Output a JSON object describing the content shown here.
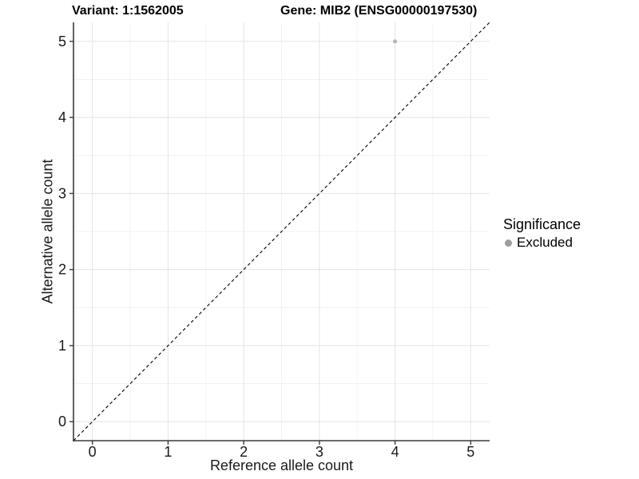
{
  "header": {
    "variant_title": "Variant: 1:1562005",
    "gene_title": "Gene: MIB2 (ENSG00000197530)"
  },
  "chart_data": {
    "type": "scatter",
    "title": "Variant: 1:1562005   Gene: MIB2 (ENSG00000197530)",
    "xlabel": "Reference allele count",
    "ylabel": "Alternative allele count",
    "xlim": [
      -0.25,
      5.25
    ],
    "ylim": [
      -0.25,
      5.25
    ],
    "x_ticks": [
      0,
      1,
      2,
      3,
      4,
      5
    ],
    "y_ticks": [
      0,
      1,
      2,
      3,
      4,
      5
    ],
    "x_minor": [
      0.5,
      1.5,
      2.5,
      3.5,
      4.5
    ],
    "y_minor": [
      0.5,
      1.5,
      2.5,
      3.5,
      4.5
    ],
    "grid": {
      "major_color": "#e4e4e4",
      "minor_color": "#f2f2f2"
    },
    "axis_color": "#3a3a3a",
    "series": [
      {
        "name": "Excluded",
        "marker": "circle",
        "color": "#b8b8b8",
        "points": [
          {
            "x": 4,
            "y": 5
          }
        ]
      }
    ],
    "reference_line": {
      "kind": "identity",
      "equation": "y = x",
      "style": "dashed",
      "color": "#000000"
    },
    "legend": {
      "title": "Significance",
      "position": "right",
      "entries": [
        {
          "label": "Excluded",
          "color": "#9e9e9e",
          "marker": "circle"
        }
      ]
    }
  }
}
